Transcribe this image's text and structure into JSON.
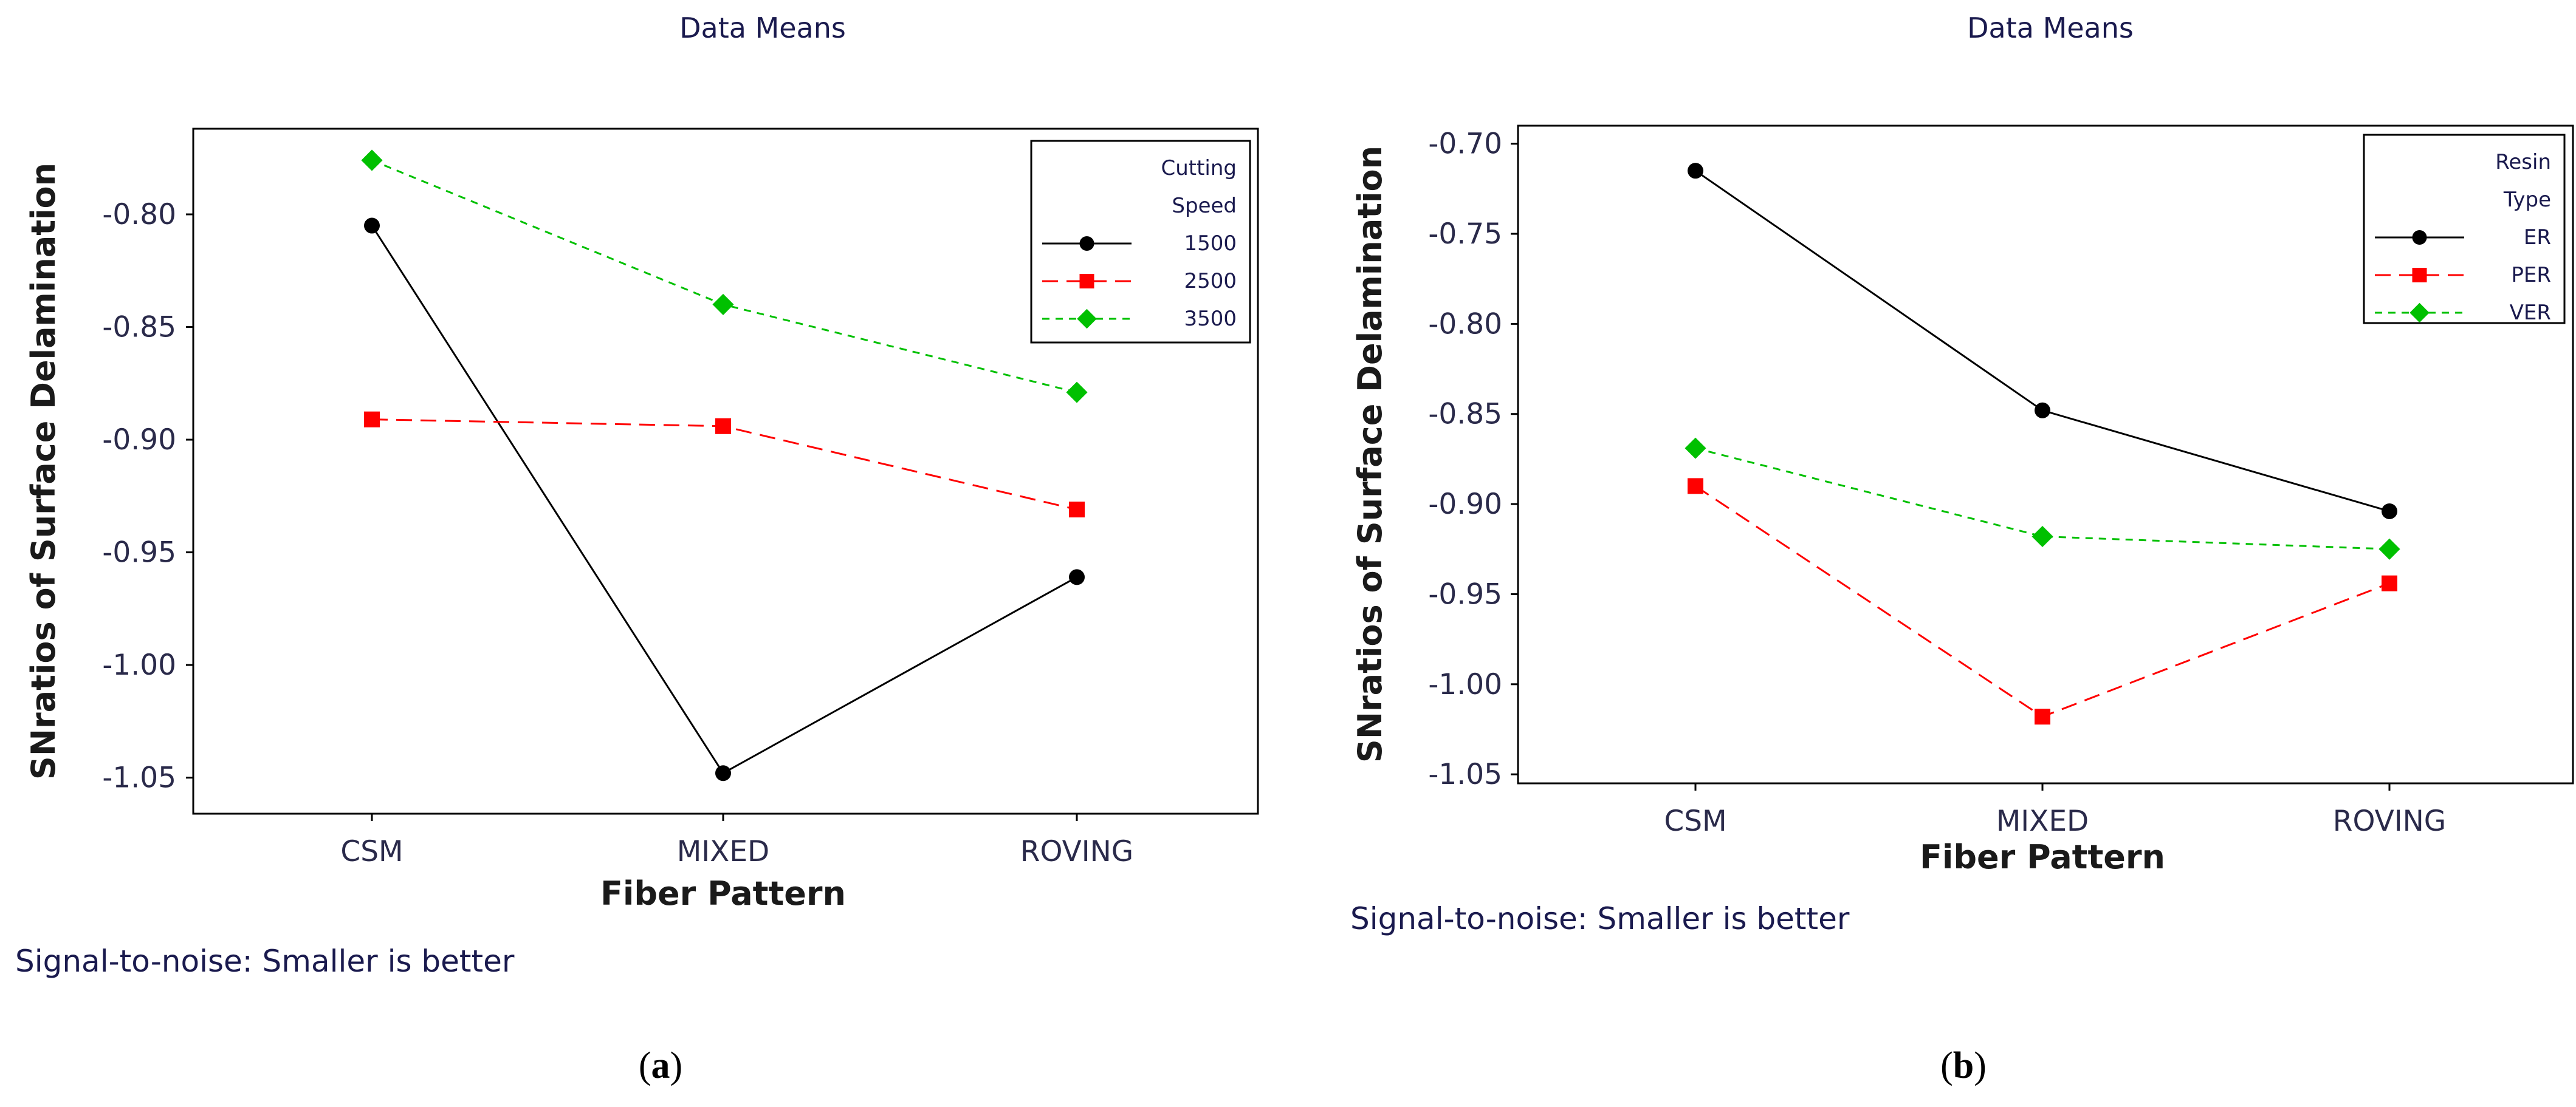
{
  "figure_captions": [
    "(a)",
    "(b)"
  ],
  "chart_data": [
    {
      "type": "line",
      "panel": "a",
      "title": "Data Means",
      "xlabel": "Fiber Pattern",
      "ylabel": "SNratios of Surface Delamination",
      "categories": [
        "CSM",
        "MIXED",
        "ROVING"
      ],
      "ylim": [
        -1.066,
        -0.762
      ],
      "yticks": [
        -0.8,
        -0.85,
        -0.9,
        -0.95,
        -1.0,
        -1.05
      ],
      "ytick_labels": [
        "-0.80",
        "-0.85",
        "-0.90",
        "-0.95",
        "-1.00",
        "-1.05"
      ],
      "legend_title": [
        "Cutting",
        "Speed"
      ],
      "legend_position": "top-right",
      "series": [
        {
          "name": "1500",
          "values": [
            -0.805,
            -1.048,
            -0.961
          ],
          "color": "#000000",
          "marker": "circle",
          "dash": "solid"
        },
        {
          "name": "2500",
          "values": [
            -0.891,
            -0.894,
            -0.931
          ],
          "color": "#ff0000",
          "marker": "square",
          "dash": "dashed"
        },
        {
          "name": "3500",
          "values": [
            -0.776,
            -0.84,
            -0.879
          ],
          "color": "#00c000",
          "marker": "diamond",
          "dash": "dotted"
        }
      ],
      "footnote": "Signal-to-noise: Smaller is better"
    },
    {
      "type": "line",
      "panel": "b",
      "title": "Data Means",
      "xlabel": "Fiber Pattern",
      "ylabel": "SNratios of Surface Delamination",
      "categories": [
        "CSM",
        "MIXED",
        "ROVING"
      ],
      "ylim": [
        -1.055,
        -0.69
      ],
      "yticks": [
        -0.7,
        -0.75,
        -0.8,
        -0.85,
        -0.9,
        -0.95,
        -1.0,
        -1.05
      ],
      "ytick_labels": [
        "-0.70",
        "-0.75",
        "-0.80",
        "-0.85",
        "-0.90",
        "-0.95",
        "-1.00",
        "-1.05"
      ],
      "legend_title": [
        "Resin",
        "Type"
      ],
      "legend_position": "top-right",
      "series": [
        {
          "name": "ER",
          "values": [
            -0.715,
            -0.848,
            -0.904
          ],
          "color": "#000000",
          "marker": "circle",
          "dash": "solid"
        },
        {
          "name": "PER",
          "values": [
            -0.89,
            -1.018,
            -0.944
          ],
          "color": "#ff0000",
          "marker": "square",
          "dash": "dashed"
        },
        {
          "name": "VER",
          "values": [
            -0.869,
            -0.918,
            -0.925
          ],
          "color": "#00c000",
          "marker": "diamond",
          "dash": "dotted"
        }
      ],
      "footnote": "Signal-to-noise: Smaller is better"
    }
  ]
}
